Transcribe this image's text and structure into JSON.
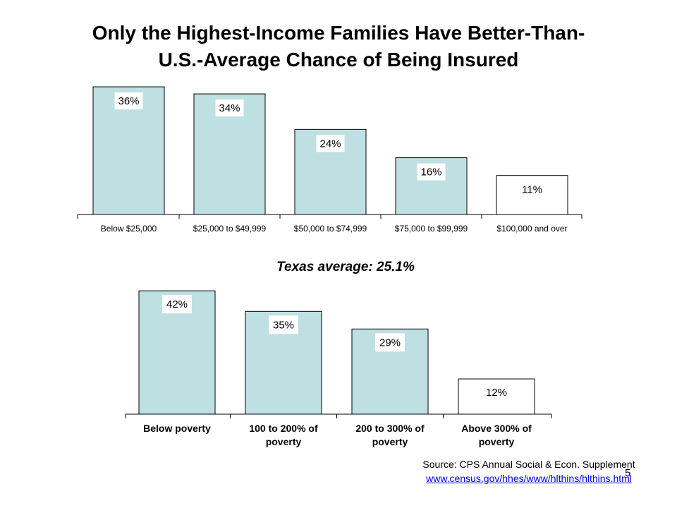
{
  "slide": {
    "title_lines": [
      "Only the Highest-Income Families Have Better-Than-",
      "U.S.-Average Chance of Being Insured"
    ],
    "texas_average": "Texas average: 25.1%",
    "source_text": "Source: CPS Annual Social & Econ. Supplement",
    "source_url": "www.census.gov/hhes/www/hlthins/hlthins.html",
    "page_number": "5"
  },
  "colors": {
    "bar_fill": "#bfe0e3",
    "highlight_fill": "#ffffff",
    "outline": "#000000",
    "link": "#0000ee"
  },
  "chart_data": [
    {
      "type": "bar",
      "title": "",
      "xlabel": "",
      "ylabel": "",
      "ylim": [
        0,
        37
      ],
      "grid": false,
      "categories": [
        "Below $25,000",
        "$25,000 to $49,999",
        "$50,000 to $74,999",
        "$75,000 to $99,999",
        "$100,000 and over"
      ],
      "values": [
        36,
        34,
        24,
        16,
        11
      ],
      "value_labels": [
        "36%",
        "34%",
        "24%",
        "16%",
        "11%"
      ],
      "highlight": [
        false,
        false,
        false,
        false,
        true
      ]
    },
    {
      "type": "bar",
      "title": "",
      "xlabel": "",
      "ylabel": "",
      "ylim": [
        0,
        43
      ],
      "grid": false,
      "categories": [
        [
          "Below poverty"
        ],
        [
          "100 to 200% of",
          "poverty"
        ],
        [
          "200 to 300% of",
          "poverty"
        ],
        [
          "Above 300% of",
          "poverty"
        ]
      ],
      "values": [
        42,
        35,
        29,
        12
      ],
      "value_labels": [
        "42%",
        "35%",
        "29%",
        "12%"
      ],
      "highlight": [
        false,
        false,
        false,
        true
      ]
    }
  ]
}
